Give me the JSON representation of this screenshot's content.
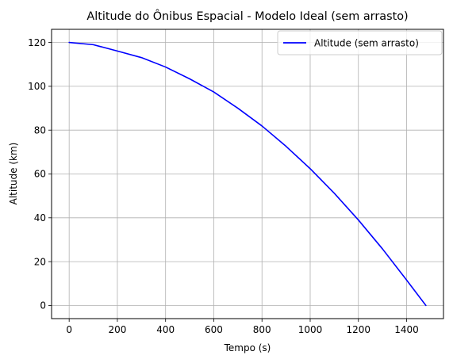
{
  "chart_data": {
    "type": "line",
    "title": "Altitude do Ônibus Espacial - Modelo Ideal (sem arrasto)",
    "xlabel": "Tempo (s)",
    "ylabel": "Altitude (km)",
    "xlim": [
      -73,
      1553
    ],
    "ylim": [
      -6,
      126
    ],
    "xticks": [
      0,
      200,
      400,
      600,
      800,
      1000,
      1200,
      1400
    ],
    "yticks": [
      0,
      20,
      40,
      60,
      80,
      100,
      120
    ],
    "grid": true,
    "legend_position": "upper right",
    "series": [
      {
        "name": "Altitude (sem arrasto)",
        "color": "#0000ff",
        "x": [
          0,
          100,
          200,
          300,
          400,
          500,
          600,
          700,
          800,
          900,
          1000,
          1100,
          1200,
          1300,
          1400,
          1480
        ],
        "y": [
          120.0,
          119.0,
          116.1,
          113.1,
          108.8,
          103.4,
          97.4,
          90.0,
          81.9,
          72.6,
          62.4,
          51.2,
          39.0,
          25.8,
          11.6,
          0.0
        ]
      }
    ]
  }
}
